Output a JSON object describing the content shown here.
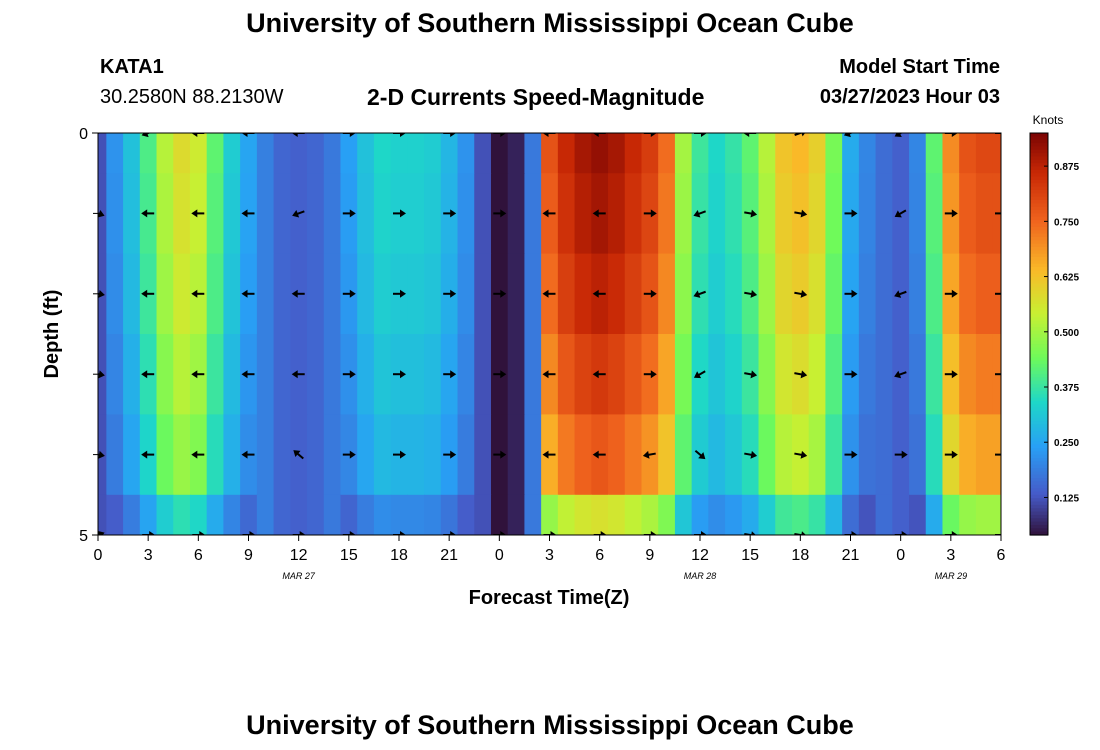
{
  "header": {
    "title": "University of Southern Mississippi Ocean Cube",
    "station_id": "KATA1",
    "coords": "30.2580N  88.2130W",
    "chart_heading": "2-D Currents Speed-Magnitude",
    "model_label": "Model Start Time",
    "model_time": "03/27/2023 Hour 03"
  },
  "footer": {
    "title": "University of Southern Mississippi Ocean Cube"
  },
  "chart_data": {
    "type": "heatmap",
    "title": "2-D Currents Speed-Magnitude",
    "xlabel": "Forecast Time(Z)",
    "ylabel": "Depth (ft)",
    "x_ticks": [
      "0",
      "3",
      "6",
      "9",
      "12",
      "15",
      "18",
      "21",
      "0",
      "3",
      "6",
      "9",
      "12",
      "15",
      "18",
      "21",
      "0",
      "3",
      "6"
    ],
    "x_tick_hours": [
      0,
      3,
      6,
      9,
      12,
      15,
      18,
      21,
      24,
      27,
      30,
      33,
      36,
      39,
      42,
      45,
      48,
      51,
      54
    ],
    "x_range_hours": [
      0,
      54
    ],
    "date_labels": [
      {
        "text": "MAR 27",
        "hour": 12
      },
      {
        "text": "MAR 28",
        "hour": 36
      },
      {
        "text": "MAR 29",
        "hour": 51
      }
    ],
    "y_ticks": [
      "0",
      "5"
    ],
    "y_range": [
      0,
      5
    ],
    "depth_levels": [
      0,
      1,
      2,
      3,
      4,
      5
    ],
    "colorbar": {
      "title": "Knots",
      "ticks": [
        "0.125",
        "0.250",
        "0.375",
        "0.500",
        "0.625",
        "0.750",
        "0.875"
      ],
      "tick_values": [
        0.125,
        0.25,
        0.375,
        0.5,
        0.625,
        0.75,
        0.875
      ],
      "range": [
        0.04,
        0.95
      ]
    },
    "profile_hours": [
      0,
      1,
      2,
      3,
      4,
      5,
      6,
      7,
      8,
      9,
      10,
      11,
      12,
      13,
      14,
      15,
      16,
      17,
      18,
      19,
      20,
      21,
      22,
      23,
      24,
      25,
      26,
      27,
      28,
      29,
      30,
      31,
      32,
      33,
      34,
      35,
      36,
      37,
      38,
      39,
      40,
      41,
      42,
      43,
      44,
      45,
      46,
      47,
      48,
      49,
      50,
      51,
      52,
      53,
      54
    ],
    "speed_profile": [
      0.12,
      0.22,
      0.3,
      0.4,
      0.52,
      0.58,
      0.55,
      0.42,
      0.32,
      0.25,
      0.19,
      0.15,
      0.14,
      0.15,
      0.18,
      0.24,
      0.3,
      0.34,
      0.33,
      0.33,
      0.32,
      0.28,
      0.22,
      0.12,
      0.04,
      0.06,
      0.18,
      0.78,
      0.86,
      0.9,
      0.92,
      0.9,
      0.86,
      0.82,
      0.74,
      0.5,
      0.38,
      0.34,
      0.37,
      0.42,
      0.52,
      0.62,
      0.64,
      0.6,
      0.45,
      0.26,
      0.2,
      0.16,
      0.14,
      0.2,
      0.42,
      0.7,
      0.78,
      0.8,
      0.8
    ],
    "depth_factor": [
      1.0,
      0.98,
      0.95,
      0.9,
      0.84,
      0.62
    ],
    "arrow_rows_depth": [
      0,
      1,
      2,
      3,
      4,
      5
    ],
    "arrow_hours": [
      0,
      3,
      6,
      9,
      12,
      15,
      18,
      21,
      24,
      27,
      30,
      33,
      36,
      39,
      42,
      45,
      48,
      51,
      54
    ],
    "arrow_angles_deg": [
      [
        200,
        200,
        180,
        180,
        180,
        0,
        0,
        0,
        0,
        180,
        180,
        0,
        0,
        180,
        20,
        200,
        210,
        0,
        0
      ],
      [
        -20,
        180,
        180,
        180,
        200,
        0,
        0,
        0,
        0,
        180,
        180,
        0,
        200,
        -10,
        -10,
        0,
        210,
        0,
        0
      ],
      [
        -10,
        180,
        180,
        180,
        180,
        0,
        0,
        0,
        0,
        180,
        180,
        0,
        200,
        -10,
        -10,
        0,
        200,
        0,
        0
      ],
      [
        -10,
        180,
        180,
        180,
        180,
        0,
        0,
        0,
        0,
        180,
        180,
        0,
        210,
        -10,
        -10,
        0,
        200,
        0,
        0
      ],
      [
        -10,
        180,
        180,
        180,
        140,
        0,
        0,
        0,
        0,
        180,
        180,
        190,
        -40,
        -10,
        -10,
        0,
        0,
        0,
        0
      ],
      [
        20,
        0,
        0,
        0,
        0,
        0,
        0,
        0,
        0,
        0,
        0,
        0,
        0,
        -10,
        -10,
        0,
        0,
        0,
        0
      ]
    ]
  }
}
